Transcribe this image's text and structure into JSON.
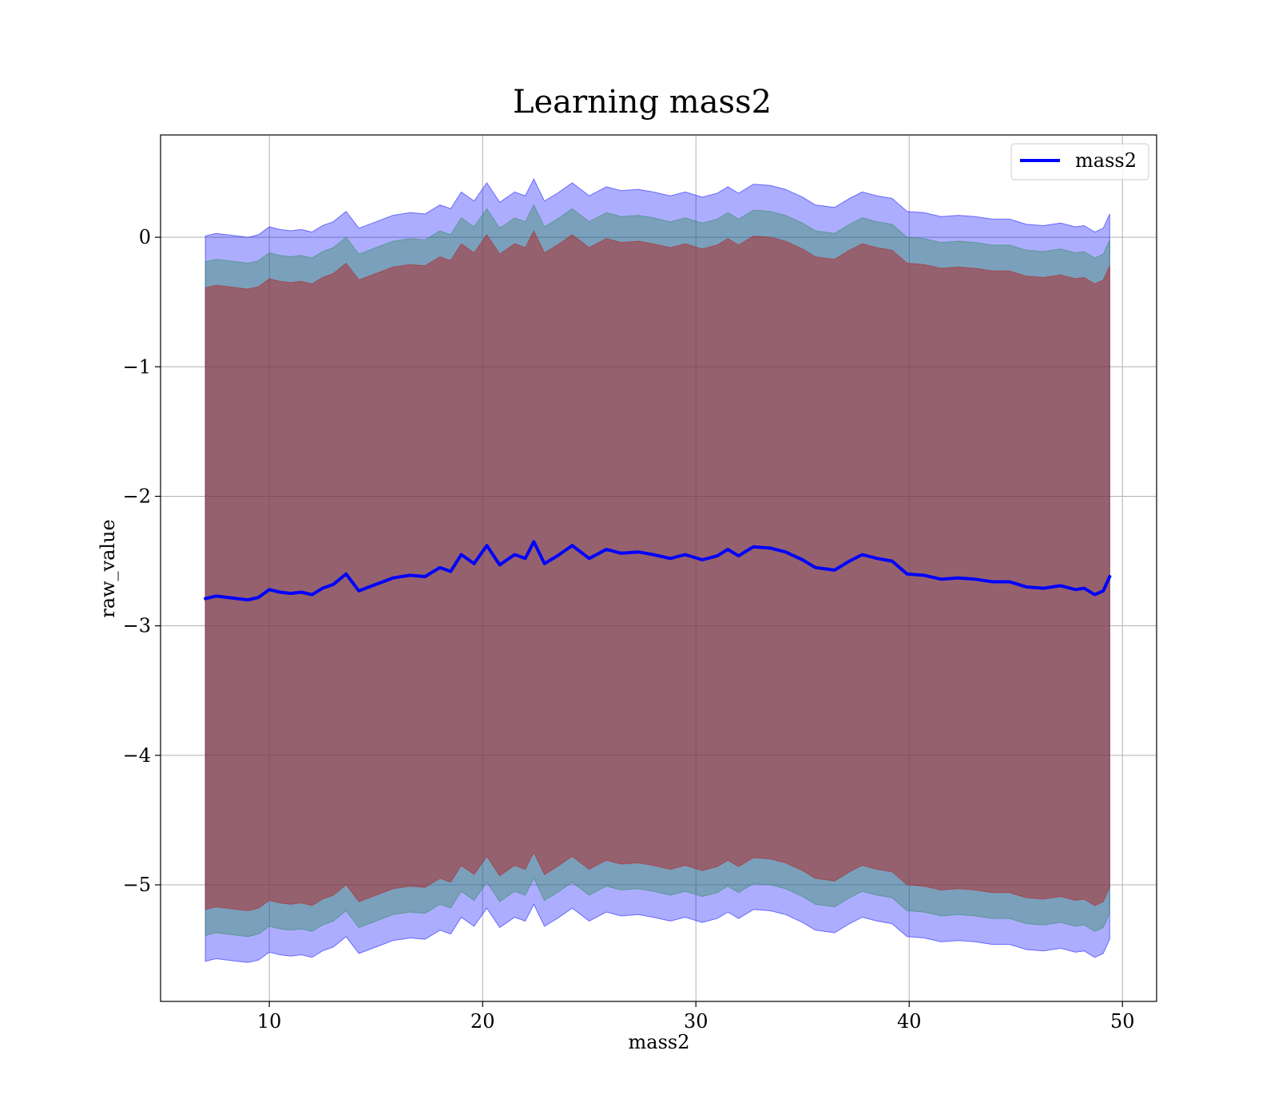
{
  "chart_data": {
    "type": "line",
    "title": "Learning mass2",
    "xlabel": "mass2",
    "ylabel": "raw_value",
    "xlim": [
      4.9,
      51.6
    ],
    "ylim": [
      -5.9,
      0.79
    ],
    "xticks": [
      10,
      20,
      30,
      40,
      50
    ],
    "xtick_labels": [
      "10",
      "20",
      "30",
      "40",
      "50"
    ],
    "yticks": [
      0,
      -1,
      -2,
      -3,
      -4,
      -5
    ],
    "ytick_labels": [
      "0",
      "−1",
      "−2",
      "−3",
      "−4",
      "−5"
    ],
    "grid": true,
    "legend": {
      "position": "top-right",
      "entries": [
        "mass2"
      ]
    },
    "series": [
      {
        "name": "mass2",
        "color": "#0000ff",
        "x": [
          7,
          7.5,
          8,
          8.5,
          9,
          9.5,
          10,
          10.5,
          11,
          11.5,
          12,
          12.5,
          13,
          13.6,
          14.2,
          15,
          15.8,
          16.6,
          17.3,
          18,
          18.5,
          19,
          19.6,
          20.2,
          20.8,
          21.5,
          22,
          22.4,
          22.9,
          23.5,
          24.2,
          25,
          25.8,
          26.5,
          27.3,
          28,
          28.8,
          29.5,
          30.3,
          31,
          31.5,
          32,
          32.7,
          33.5,
          34.2,
          35,
          35.6,
          36.5,
          37.2,
          37.8,
          38.5,
          39.2,
          39.9,
          40.7,
          41.5,
          42.3,
          43.1,
          43.9,
          44.7,
          45.5,
          46.3,
          47.1,
          47.8,
          48.2,
          48.7,
          49.1,
          49.4
        ],
        "values": [
          -2.79,
          -2.77,
          -2.78,
          -2.79,
          -2.8,
          -2.78,
          -2.72,
          -2.74,
          -2.75,
          -2.74,
          -2.76,
          -2.71,
          -2.68,
          -2.6,
          -2.73,
          -2.68,
          -2.63,
          -2.61,
          -2.62,
          -2.55,
          -2.58,
          -2.45,
          -2.52,
          -2.38,
          -2.53,
          -2.45,
          -2.48,
          -2.35,
          -2.52,
          -2.46,
          -2.38,
          -2.48,
          -2.41,
          -2.44,
          -2.43,
          -2.45,
          -2.48,
          -2.45,
          -2.49,
          -2.46,
          -2.41,
          -2.46,
          -2.39,
          -2.4,
          -2.43,
          -2.49,
          -2.55,
          -2.57,
          -2.5,
          -2.45,
          -2.48,
          -2.5,
          -2.6,
          -2.61,
          -2.64,
          -2.63,
          -2.64,
          -2.66,
          -2.66,
          -2.7,
          -2.71,
          -2.69,
          -2.72,
          -2.71,
          -2.76,
          -2.73,
          -2.62
        ]
      }
    ],
    "bands": [
      {
        "color": "#0000ff",
        "opacity": 0.32,
        "half_width": 2.8
      },
      {
        "color": "#2e8b57",
        "opacity": 0.4,
        "half_width": 2.6
      },
      {
        "color": "#b22222",
        "opacity": 0.5,
        "half_width": 2.4
      }
    ]
  }
}
